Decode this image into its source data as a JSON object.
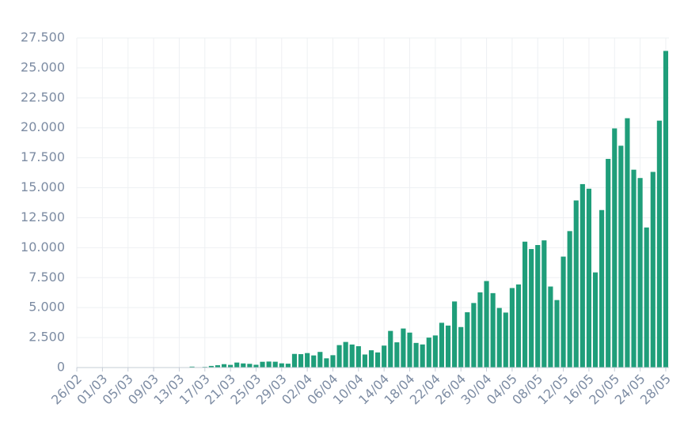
{
  "chart_data": {
    "type": "bar",
    "categories": [
      "26/02",
      null,
      null,
      null,
      "01/03",
      null,
      null,
      null,
      "05/03",
      null,
      null,
      null,
      "09/03",
      null,
      null,
      null,
      "13/03",
      null,
      null,
      null,
      "17/03",
      null,
      null,
      null,
      "21/03",
      null,
      null,
      null,
      "25/03",
      null,
      null,
      null,
      "29/03",
      null,
      null,
      null,
      "02/04",
      null,
      null,
      null,
      "06/04",
      null,
      null,
      null,
      "10/04",
      null,
      null,
      null,
      "14/04",
      null,
      null,
      null,
      "18/04",
      null,
      null,
      null,
      "22/04",
      null,
      null,
      null,
      "26/04",
      null,
      null,
      null,
      "30/04",
      null,
      null,
      null,
      "04/05",
      null,
      null,
      null,
      "08/05",
      null,
      null,
      null,
      "12/05",
      null,
      null,
      null,
      "16/05",
      null,
      null,
      null,
      "20/05",
      null,
      null,
      null,
      "24/05",
      null,
      null,
      null,
      "28/05"
    ],
    "values": [
      1,
      0,
      0,
      1,
      0,
      0,
      0,
      0,
      1,
      5,
      6,
      5,
      5,
      6,
      18,
      25,
      21,
      23,
      79,
      34,
      57,
      137,
      193,
      283,
      224,
      418,
      345,
      310,
      232,
      482,
      502,
      487,
      352,
      323,
      1138,
      1119,
      1208,
      1012,
      1304,
      770,
      1031,
      1873,
      2136,
      1922,
      1781,
      1089,
      1442,
      1261,
      1832,
      3058,
      2105,
      3257,
      2917,
      2055,
      1927,
      2498,
      2678,
      3735,
      3503,
      5514,
      3379,
      4613,
      5385,
      6276,
      7218,
      6209,
      4970,
      4588,
      6633,
      6935,
      10503,
      9888,
      10222,
      10611,
      6760,
      5632,
      9258,
      11385,
      13944,
      15305,
      14919,
      7938,
      13140,
      17408,
      19951,
      18508,
      20803,
      16508,
      15813,
      11687,
      16324,
      20599,
      26417
    ],
    "color": "#1f9e7a",
    "ylim": [
      0,
      27500
    ],
    "yticks": [
      0,
      {
        "value": 2500,
        "label": "2.500"
      },
      {
        "value": 5000,
        "label": "5.000"
      },
      {
        "value": 7500,
        "label": "7.500"
      },
      {
        "value": 10000,
        "label": "10.000"
      },
      {
        "value": 12500,
        "label": "12.500"
      },
      {
        "value": 15000,
        "label": "15.000"
      },
      {
        "value": 17500,
        "label": "17.500"
      },
      {
        "value": 20000,
        "label": "20.000"
      },
      {
        "value": 22500,
        "label": "22.500"
      },
      {
        "value": 25000,
        "label": "25.000"
      },
      {
        "value": 27500,
        "label": "27.500"
      }
    ],
    "grid": true
  }
}
